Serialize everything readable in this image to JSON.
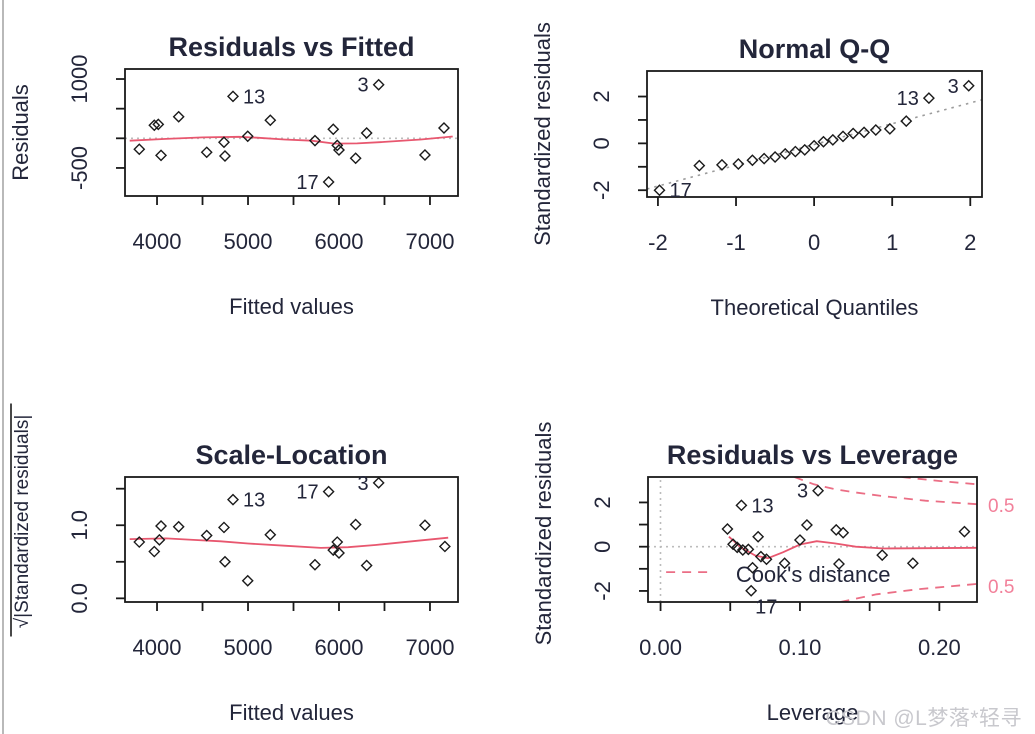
{
  "watermark": {
    "text": "CSDN @L梦落*轻寻"
  },
  "colors": {
    "ink": "#1a1a1a",
    "text": "#23263a",
    "red_solid": "#e8576f",
    "red_dash": "#eb6e85",
    "pink": "#f2809a",
    "grey_dot": "#bcbcbc",
    "qq_grey": "#9c9c9c",
    "watermark": "#c8c8cd"
  },
  "chart_data": [
    {
      "type": "scatter",
      "title": "Residuals vs Fitted",
      "xlabel": "Fitted values",
      "ylabel": "Residuals",
      "xlim": [
        3648,
        7308
      ],
      "ylim": [
        -973,
        1169
      ],
      "grid": false,
      "xticks": [
        [
          4000,
          "4000"
        ],
        [
          4500,
          ""
        ],
        [
          5000,
          "5000"
        ],
        [
          5500,
          ""
        ],
        [
          6000,
          "6000"
        ],
        [
          6500,
          ""
        ],
        [
          7000,
          "7000"
        ]
      ],
      "yticks": [
        [
          -500,
          "-500"
        ],
        [
          0,
          ""
        ],
        [
          500,
          ""
        ],
        [
          1000,
          "1000"
        ]
      ],
      "points": [
        [
          3805,
          -185
        ],
        [
          3970,
          220
        ],
        [
          4014,
          235
        ],
        [
          4044,
          -287
        ],
        [
          4238,
          364
        ],
        [
          4546,
          -236
        ],
        [
          4736,
          -67
        ],
        [
          4747,
          -298
        ],
        [
          4835,
          708
        ],
        [
          4997,
          34
        ],
        [
          5245,
          304
        ],
        [
          5736,
          -39
        ],
        [
          5886,
          -737
        ],
        [
          5937,
          152
        ],
        [
          5981,
          -120
        ],
        [
          6000,
          -197
        ],
        [
          6183,
          -337
        ],
        [
          6304,
          89
        ],
        [
          6436,
          904
        ],
        [
          6945,
          -281
        ],
        [
          7154,
          174
        ]
      ],
      "labeled_points": [
        {
          "label": "13",
          "x": 4835,
          "y": 708,
          "side": "right"
        },
        {
          "label": "3",
          "x": 6436,
          "y": 904,
          "side": "left"
        },
        {
          "label": "17",
          "x": 5886,
          "y": -737,
          "side": "left"
        }
      ],
      "lines": [
        {
          "role": "zero-reference",
          "colorKey": "grey_dot",
          "dash": "2,4",
          "w": 1.6,
          "pts": [
            [
              3648,
              0
            ],
            [
              7308,
              0
            ]
          ]
        },
        {
          "role": "loess-smooth",
          "colorKey": "red_solid",
          "dash": "",
          "w": 1.8,
          "pts": [
            [
              3700,
              -40
            ],
            [
              4100,
              -10
            ],
            [
              4500,
              15
            ],
            [
              4900,
              25
            ],
            [
              5100,
              10
            ],
            [
              5400,
              -20
            ],
            [
              5700,
              -40
            ],
            [
              5950,
              -90
            ],
            [
              6200,
              -85
            ],
            [
              6500,
              -60
            ],
            [
              6900,
              -20
            ],
            [
              7250,
              30
            ]
          ]
        }
      ]
    },
    {
      "type": "scatter",
      "title": "Normal Q-Q",
      "xlabel": "Theoretical Quantiles",
      "ylabel": "Standardized residuals",
      "xlim": [
        -2.14,
        2.15
      ],
      "ylim": [
        -2.29,
        3.09
      ],
      "grid": false,
      "xticks": [
        [
          -2,
          "-2"
        ],
        [
          -1,
          "-1"
        ],
        [
          0,
          "0"
        ],
        [
          1,
          "1"
        ],
        [
          2,
          "2"
        ]
      ],
      "yticks": [
        [
          -2,
          "-2"
        ],
        [
          -1,
          ""
        ],
        [
          0,
          "0"
        ],
        [
          1,
          ""
        ],
        [
          2,
          "2"
        ]
      ],
      "points": [
        [
          -1.98,
          -2.0
        ],
        [
          -1.47,
          -0.95
        ],
        [
          -1.18,
          -0.92
        ],
        [
          -0.97,
          -0.88
        ],
        [
          -0.79,
          -0.72
        ],
        [
          -0.64,
          -0.65
        ],
        [
          -0.5,
          -0.58
        ],
        [
          -0.37,
          -0.45
        ],
        [
          -0.24,
          -0.35
        ],
        [
          -0.12,
          -0.28
        ],
        [
          0,
          -0.1
        ],
        [
          0.12,
          0.07
        ],
        [
          0.24,
          0.15
        ],
        [
          0.37,
          0.3
        ],
        [
          0.5,
          0.42
        ],
        [
          0.64,
          0.47
        ],
        [
          0.79,
          0.57
        ],
        [
          0.97,
          0.62
        ],
        [
          1.18,
          0.95
        ],
        [
          1.47,
          1.93
        ],
        [
          1.98,
          2.46
        ]
      ],
      "labeled_points": [
        {
          "label": "17",
          "x": -1.98,
          "y": -2.0,
          "side": "right"
        },
        {
          "label": "13",
          "x": 1.47,
          "y": 1.93,
          "side": "left"
        },
        {
          "label": "3",
          "x": 1.98,
          "y": 2.46,
          "side": "left"
        }
      ],
      "lines": [
        {
          "role": "qq-reference",
          "colorKey": "qq_grey",
          "dash": "2.5,5",
          "w": 1.6,
          "pts": [
            [
              -2.14,
              -1.95
            ],
            [
              2.15,
              1.86
            ]
          ]
        }
      ]
    },
    {
      "type": "scatter",
      "title": "Scale-Location",
      "xlabel": "Fitted values",
      "ylabel": "√|Standardized residuals|",
      "xlim": [
        3648,
        7308
      ],
      "ylim": [
        -0.05,
        1.66
      ],
      "grid": false,
      "xticks": [
        [
          4000,
          "4000"
        ],
        [
          4500,
          ""
        ],
        [
          5000,
          "5000"
        ],
        [
          5500,
          ""
        ],
        [
          6000,
          "6000"
        ],
        [
          6500,
          ""
        ],
        [
          7000,
          "7000"
        ]
      ],
      "yticks": [
        [
          0,
          "0.0"
        ],
        [
          0.5,
          ""
        ],
        [
          1,
          "1.0"
        ],
        [
          1.5,
          ""
        ]
      ],
      "points": [
        [
          3805,
          0.77
        ],
        [
          3970,
          0.64
        ],
        [
          4026,
          0.8
        ],
        [
          4044,
          0.99
        ],
        [
          4238,
          0.98
        ],
        [
          4546,
          0.86
        ],
        [
          4736,
          0.97
        ],
        [
          4747,
          0.5
        ],
        [
          4835,
          1.35
        ],
        [
          4997,
          0.24
        ],
        [
          5245,
          0.87
        ],
        [
          5736,
          0.46
        ],
        [
          5886,
          1.46
        ],
        [
          5937,
          0.66
        ],
        [
          5981,
          0.77
        ],
        [
          6000,
          0.62
        ],
        [
          6183,
          1.01
        ],
        [
          6304,
          0.45
        ],
        [
          6436,
          1.58
        ],
        [
          6945,
          1.0
        ],
        [
          7164,
          0.71
        ]
      ],
      "labeled_points": [
        {
          "label": "13",
          "x": 4835,
          "y": 1.35,
          "side": "right"
        },
        {
          "label": "17",
          "x": 5886,
          "y": 1.46,
          "side": "left"
        },
        {
          "label": "3",
          "x": 6436,
          "y": 1.58,
          "side": "left"
        }
      ],
      "lines": [
        {
          "role": "loess-smooth",
          "colorKey": "red_solid",
          "dash": "",
          "w": 1.8,
          "pts": [
            [
              3700,
              0.81
            ],
            [
              4100,
              0.82
            ],
            [
              4400,
              0.8
            ],
            [
              4700,
              0.78
            ],
            [
              5000,
              0.75
            ],
            [
              5400,
              0.72
            ],
            [
              5800,
              0.69
            ],
            [
              6100,
              0.7
            ],
            [
              6400,
              0.73
            ],
            [
              6800,
              0.78
            ],
            [
              7200,
              0.83
            ]
          ]
        }
      ]
    },
    {
      "type": "scatter",
      "title": "Residuals vs Leverage",
      "xlabel": "Leverage",
      "ylabel": "Standardized residuals",
      "xlim": [
        -0.009,
        0.227
      ],
      "ylim": [
        -2.5,
        3.15
      ],
      "grid": false,
      "xticks": [
        [
          0,
          "0.00"
        ],
        [
          0.05,
          ""
        ],
        [
          0.1,
          "0.10"
        ],
        [
          0.15,
          ""
        ],
        [
          0.2,
          "0.20"
        ]
      ],
      "yticks": [
        [
          -2,
          "-2"
        ],
        [
          -1,
          ""
        ],
        [
          0,
          "0"
        ],
        [
          1,
          ""
        ],
        [
          2,
          "2"
        ]
      ],
      "points": [
        [
          0.048,
          0.8
        ],
        [
          0.052,
          0.11
        ],
        [
          0.055,
          -0.03
        ],
        [
          0.058,
          1.87
        ],
        [
          0.059,
          -0.15
        ],
        [
          0.063,
          -0.12
        ],
        [
          0.065,
          -1.99
        ],
        [
          0.066,
          -0.95
        ],
        [
          0.07,
          0.45
        ],
        [
          0.072,
          -0.45
        ],
        [
          0.076,
          -0.57
        ],
        [
          0.089,
          -0.75
        ],
        [
          0.1,
          0.3
        ],
        [
          0.105,
          0.98
        ],
        [
          0.113,
          2.53
        ],
        [
          0.126,
          0.76
        ],
        [
          0.131,
          0.63
        ],
        [
          0.128,
          -0.78
        ],
        [
          0.159,
          -0.38
        ],
        [
          0.181,
          -0.75
        ],
        [
          0.218,
          0.68
        ]
      ],
      "labeled_points": [
        {
          "label": "13",
          "x": 0.058,
          "y": 1.87,
          "side": "right"
        },
        {
          "label": "3",
          "x": 0.113,
          "y": 2.53,
          "side": "left"
        },
        {
          "label": "17",
          "x": 0.065,
          "y": -1.99,
          "side": "below-right"
        }
      ],
      "lines": [
        {
          "role": "zero-h-reference",
          "colorKey": "grey_dot",
          "dash": "2,4",
          "w": 1.6,
          "pts": [
            [
              -0.009,
              0
            ],
            [
              0.227,
              0
            ]
          ]
        },
        {
          "role": "zero-v-reference",
          "colorKey": "grey_dot",
          "dash": "2,4",
          "w": 1.6,
          "pts": [
            [
              0,
              -2.5
            ],
            [
              0,
              3.15
            ]
          ]
        },
        {
          "role": "cook-contour-05-upper",
          "colorKey": "red_dash",
          "dash": "9,7",
          "w": 1.8,
          "pts": [
            [
              0.096,
              3.15
            ],
            [
              0.11,
              2.82
            ],
            [
              0.125,
              2.6
            ],
            [
              0.14,
              2.45
            ],
            [
              0.16,
              2.28
            ],
            [
              0.19,
              2.08
            ],
            [
              0.227,
              1.92
            ]
          ]
        },
        {
          "role": "cook-contour-1-upper",
          "colorKey": "red_dash",
          "dash": "9,7",
          "w": 1.8,
          "pts": [
            [
              0.173,
              3.15
            ],
            [
              0.2,
              2.97
            ],
            [
              0.227,
              2.82
            ]
          ]
        },
        {
          "role": "cook-contour-05-lower",
          "colorKey": "red_dash",
          "dash": "9,7",
          "w": 1.8,
          "pts": [
            [
              0.129,
              -2.5
            ],
            [
              0.155,
              -2.15
            ],
            [
              0.185,
              -1.92
            ],
            [
              0.227,
              -1.68
            ]
          ]
        },
        {
          "role": "loess-smooth",
          "colorKey": "red_solid",
          "dash": "",
          "w": 1.8,
          "pts": [
            [
              0.049,
              0.45
            ],
            [
              0.058,
              -0.05
            ],
            [
              0.068,
              -0.4
            ],
            [
              0.077,
              -0.52
            ],
            [
              0.088,
              -0.25
            ],
            [
              0.1,
              0.1
            ],
            [
              0.112,
              0.25
            ],
            [
              0.125,
              0.15
            ],
            [
              0.14,
              0
            ],
            [
              0.16,
              -0.08
            ],
            [
              0.19,
              -0.07
            ],
            [
              0.227,
              -0.05
            ]
          ]
        }
      ],
      "legend": {
        "text": "Cook's distance",
        "x1": 0.004,
        "x2": 0.034,
        "y": -1.15,
        "text_x": 0.054
      },
      "right_labels": [
        {
          "text": "0.5",
          "y": 1.89
        },
        {
          "text": "0.5",
          "y": -1.78
        }
      ]
    }
  ]
}
